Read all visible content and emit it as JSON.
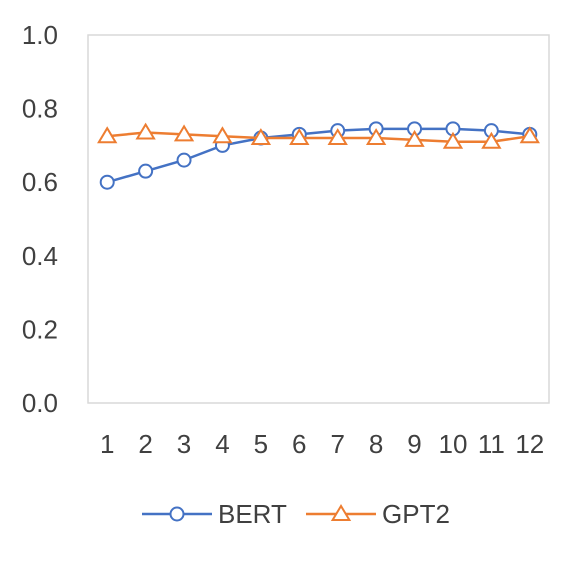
{
  "chart_data": {
    "type": "line",
    "title": "",
    "xlabel": "",
    "ylabel": "",
    "categories": [
      "1",
      "2",
      "3",
      "4",
      "5",
      "6",
      "7",
      "8",
      "9",
      "10",
      "11",
      "12"
    ],
    "ylim": [
      0,
      1
    ],
    "yticks": [
      "0.0",
      "0.2",
      "0.4",
      "0.6",
      "0.8",
      "1.0"
    ],
    "grid": false,
    "legend_position": "bottom",
    "series": [
      {
        "name": "BERT",
        "marker": "circle",
        "color": "#4472C4",
        "values": [
          0.6,
          0.63,
          0.66,
          0.7,
          0.72,
          0.73,
          0.74,
          0.745,
          0.745,
          0.745,
          0.74,
          0.73
        ]
      },
      {
        "name": "GPT2",
        "marker": "triangle",
        "color": "#ED7D31",
        "values": [
          0.725,
          0.735,
          0.73,
          0.725,
          0.72,
          0.72,
          0.72,
          0.72,
          0.715,
          0.71,
          0.71,
          0.725
        ]
      }
    ]
  }
}
